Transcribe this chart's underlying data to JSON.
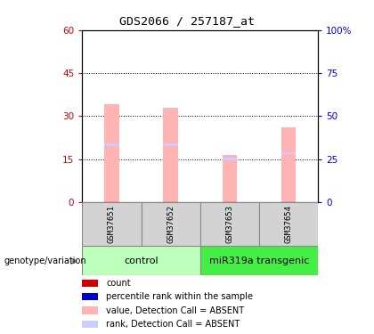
{
  "title": "GDS2066 / 257187_at",
  "samples": [
    "GSM37651",
    "GSM37652",
    "GSM37653",
    "GSM37654"
  ],
  "group_labels": [
    "control",
    "miR319a transgenic"
  ],
  "bar_values": [
    34,
    33,
    16.5,
    26
  ],
  "rank_values": [
    20,
    20,
    15,
    17
  ],
  "ylim_left": [
    0,
    60
  ],
  "ylim_right": [
    0,
    100
  ],
  "yticks_left": [
    0,
    15,
    30,
    45,
    60
  ],
  "yticks_right": [
    0,
    25,
    50,
    75,
    100
  ],
  "absent_bar_color": "#ffb3b3",
  "absent_rank_color": "#ccccff",
  "count_color": "#cc0000",
  "percentile_color": "#0000cc",
  "left_tick_color": "#cc0000",
  "right_tick_color": "#0000cc",
  "bar_width": 0.25,
  "sample_box_color": "#d3d3d3",
  "ctrl_color": "#bbffbb",
  "mir_color": "#44ee44",
  "legend_label_count": "count",
  "legend_label_rank": "percentile rank within the sample",
  "legend_label_absent_val": "value, Detection Call = ABSENT",
  "legend_label_absent_rank": "rank, Detection Call = ABSENT",
  "genotype_label": "genotype/variation"
}
